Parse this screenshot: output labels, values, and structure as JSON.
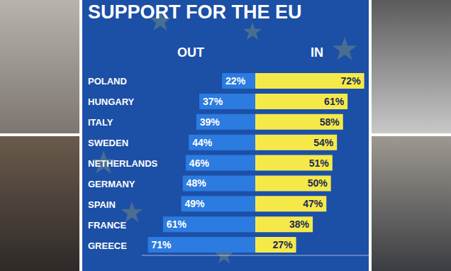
{
  "chart_data": {
    "type": "bar",
    "orientation": "horizontal",
    "title": "SUPPORT FOR THE EU",
    "categories": [
      "POLAND",
      "HUNGARY",
      "ITALY",
      "SWEDEN",
      "NETHERLANDS",
      "GERMANY",
      "SPAIN",
      "FRANCE",
      "GREECE"
    ],
    "series": [
      {
        "name": "OUT",
        "color": "#2b7be0",
        "values": [
          22,
          37,
          39,
          44,
          46,
          48,
          49,
          61,
          71
        ],
        "value_labels": [
          "22%",
          "37%",
          "39%",
          "44%",
          "46%",
          "48%",
          "49%",
          "61%",
          "71%"
        ]
      },
      {
        "name": "IN",
        "color": "#f5e94a",
        "values": [
          72,
          61,
          58,
          54,
          51,
          50,
          47,
          38,
          27
        ],
        "value_labels": [
          "72%",
          "61%",
          "58%",
          "54%",
          "51%",
          "50%",
          "47%",
          "38%",
          "27%"
        ]
      }
    ],
    "xlim": [
      0,
      75
    ],
    "tick_labels": "y",
    "data_labels": true
  }
}
